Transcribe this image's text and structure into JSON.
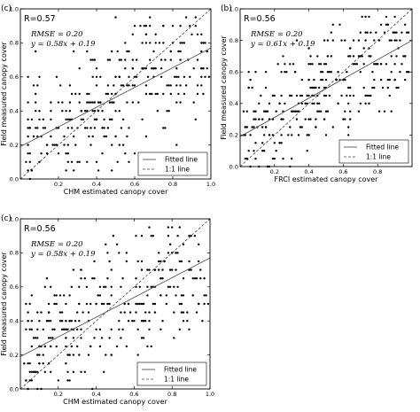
{
  "chart_data": [
    {
      "type": "scatter",
      "panel_label": "(c)",
      "r_text": "R=0.57",
      "rmse_text": "RMSE = 0.20",
      "eq_text": "y = 0.58x + 0.19",
      "xlabel": "CHM estimated canopy cover",
      "ylabel": "Field measured canopy cover",
      "xlim": [
        0.0,
        1.0
      ],
      "ylim": [
        0.0,
        1.0
      ],
      "xticks": [
        "0.2",
        "0.4",
        "0.6",
        "0.8",
        "1.0"
      ],
      "yticks": [
        "0.0",
        "0.2",
        "0.4",
        "0.6",
        "0.8",
        "1.0"
      ],
      "fit": {
        "slope": 0.58,
        "intercept": 0.19
      },
      "legend": [
        "Fitted line",
        "1:1 line"
      ],
      "legend_position": "bottom-right",
      "seed": 11
    },
    {
      "type": "scatter",
      "panel_label": "(b)",
      "r_text": "R=0.56",
      "rmse_text": "RMSE = 0.20",
      "eq_text": "y = 0.61x + 0.19",
      "xlabel": "FRCI estimated canopy cover",
      "ylabel": "Field measured canopy cover",
      "xlim": [
        0.0,
        1.0
      ],
      "ylim": [
        0.0,
        1.0
      ],
      "xticks": [
        "0.2",
        "0.4",
        "0.6",
        "0.8"
      ],
      "yticks": [
        "0.0",
        "0.2",
        "0.4",
        "0.6",
        "0.8",
        "1.0"
      ],
      "fit": {
        "slope": 0.61,
        "intercept": 0.19
      },
      "legend": [
        "Fitted line",
        "1:1 line"
      ],
      "legend_position": "bottom-right",
      "seed": 23
    },
    {
      "type": "scatter",
      "panel_label": "(c)",
      "r_text": "R=0.56",
      "rmse_text": "RMSE = 0.20",
      "eq_text": "y = 0.58x + 0.19",
      "xlabel": "CHM estimated canopy cover",
      "ylabel": "Field measured canopy cover",
      "xlim": [
        0.0,
        1.0
      ],
      "ylim": [
        0.0,
        1.0
      ],
      "xticks": [
        "0.2",
        "0.4",
        "0.6",
        "0.8",
        "1.0"
      ],
      "yticks": [
        "0.0",
        "0.2",
        "0.4",
        "0.6",
        "0.8",
        "1.0"
      ],
      "fit": {
        "slope": 0.58,
        "intercept": 0.19
      },
      "legend": [
        "Fitted line",
        "1:1 line"
      ],
      "legend_position": "bottom-right",
      "seed": 37
    }
  ]
}
